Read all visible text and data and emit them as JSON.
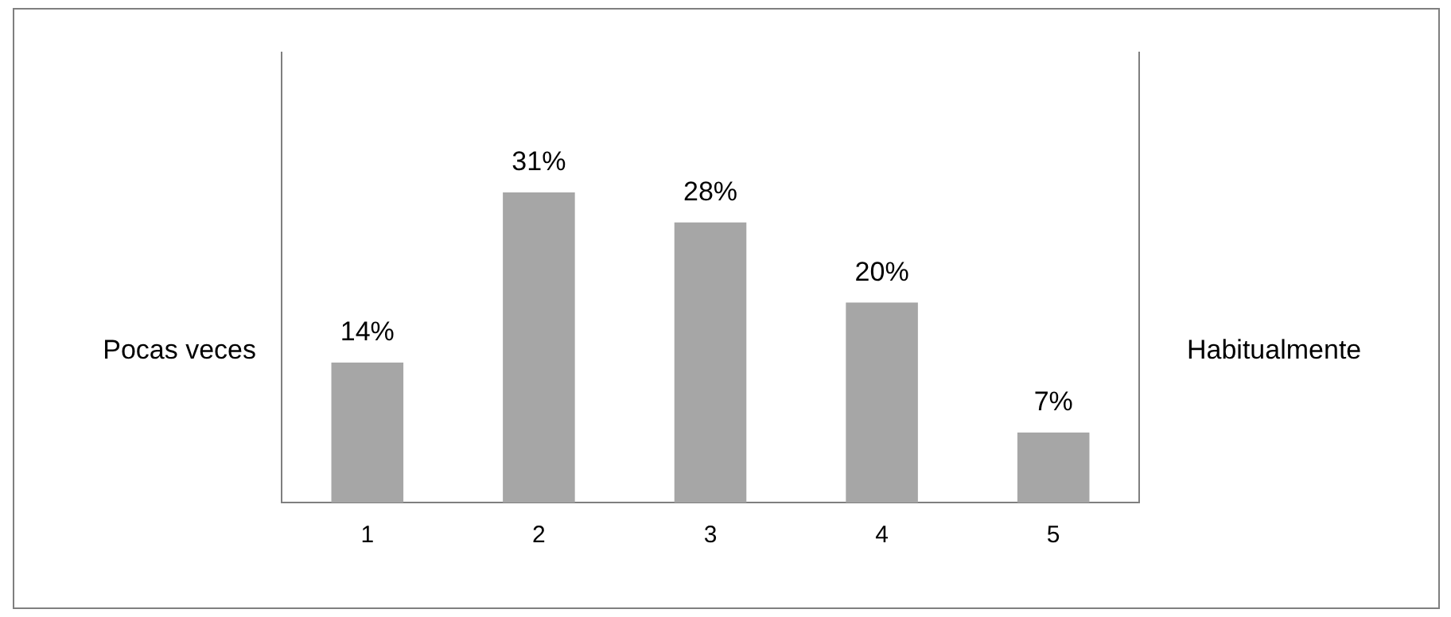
{
  "chart_data": {
    "type": "bar",
    "ylabel": "Pocas veces",
    "y2label": "Habitualmente",
    "categories": [
      "1",
      "2",
      "3",
      "4",
      "5"
    ],
    "values": [
      14,
      31,
      28,
      20,
      7
    ],
    "color": "#a6a6a6",
    "value_labels": [
      "14%",
      "31%",
      "28%",
      "20%",
      "7%"
    ],
    "grid": false,
    "legend": false
  }
}
